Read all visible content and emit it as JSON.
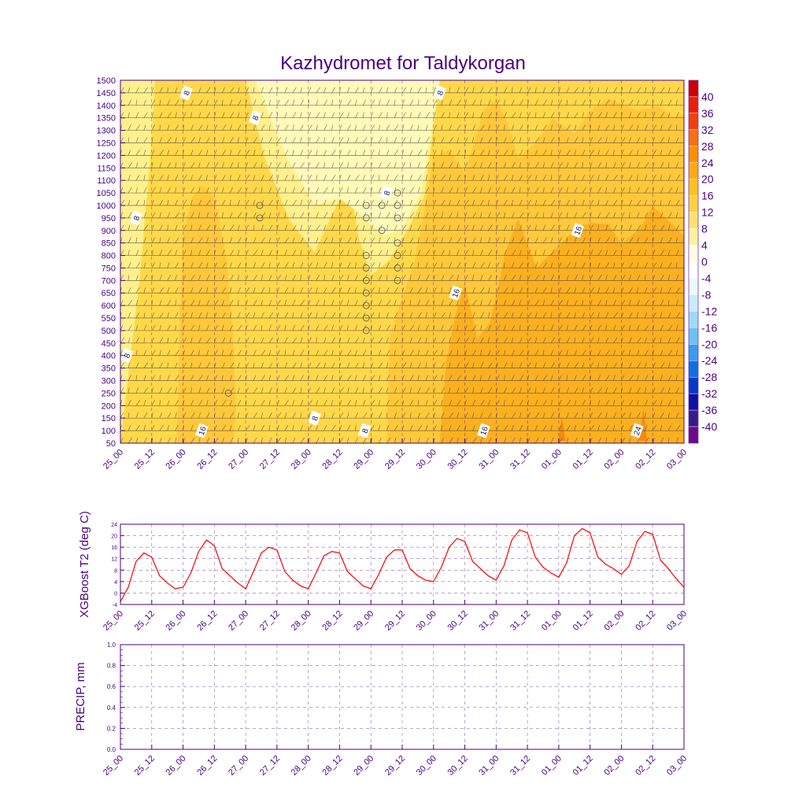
{
  "title": "Kazhydromet for Taldykorgan",
  "colors": {
    "axis": "#4b0082",
    "grid": "#4b0082",
    "t2_line": "#ff0000",
    "contour_line": "#555555",
    "barb": "#333333"
  },
  "time_labels": [
    "25_00",
    "25_12",
    "26_00",
    "26_12",
    "27_00",
    "27_12",
    "28_00",
    "28_12",
    "29_00",
    "29_12",
    "30_00",
    "30_12",
    "31_00",
    "31_12",
    "01_00",
    "01_12",
    "02_00",
    "02_12",
    "03_00"
  ],
  "chart_data": [
    {
      "type": "heatmap",
      "name": "cross-section",
      "title": "Kazhydromet for Taldykorgan",
      "xlabel": "",
      "ylabel": "",
      "x_ticks": [
        "25_00",
        "25_12",
        "26_00",
        "26_12",
        "27_00",
        "27_12",
        "28_00",
        "28_12",
        "29_00",
        "29_12",
        "30_00",
        "30_12",
        "31_00",
        "31_12",
        "01_00",
        "01_12",
        "02_00",
        "02_12",
        "03_00"
      ],
      "y_ticks": [
        50,
        100,
        150,
        200,
        250,
        300,
        350,
        400,
        450,
        500,
        550,
        600,
        650,
        700,
        750,
        800,
        850,
        900,
        950,
        1000,
        1050,
        1100,
        1150,
        1200,
        1250,
        1300,
        1350,
        1400,
        1450,
        1500
      ],
      "ylim": [
        50,
        1500
      ],
      "colorbar": {
        "labels": [
          "40",
          "36",
          "32",
          "28",
          "24",
          "20",
          "16",
          "12",
          "8",
          "4",
          "0",
          "-4",
          "-8",
          "-12",
          "-16",
          "-20",
          "-24",
          "-28",
          "-32",
          "-36",
          "-40"
        ],
        "colors": [
          "#cc0000",
          "#e8200a",
          "#f04010",
          "#f87010",
          "#fc9000",
          "#ffaa10",
          "#ffc020",
          "#ffd040",
          "#ffe070",
          "#fff0a0",
          "#fffde8",
          "#ffffff",
          "#eaf8fc",
          "#c8ecfa",
          "#a0daf5",
          "#6ec2f0",
          "#3a9cf0",
          "#1070e0",
          "#0838c8",
          "#1010a0",
          "#3a1a8a",
          "#6a0a8a"
        ]
      },
      "contour_labels": [
        {
          "text": "8",
          "t": 2.1,
          "p": 1450
        },
        {
          "text": "8",
          "t": 4.3,
          "p": 1350
        },
        {
          "text": "8",
          "t": 10.2,
          "p": 1450
        },
        {
          "text": "8",
          "t": 0.5,
          "p": 950
        },
        {
          "text": "8",
          "t": 8.5,
          "p": 1050
        },
        {
          "text": "8",
          "t": 0.2,
          "p": 400
        },
        {
          "text": "8",
          "t": 6.2,
          "p": 150
        },
        {
          "text": "8",
          "t": 7.8,
          "p": 100
        },
        {
          "text": "16",
          "t": 2.6,
          "p": 100
        },
        {
          "text": "16",
          "t": 10.7,
          "p": 650
        },
        {
          "text": "16",
          "t": 11.6,
          "p": 100
        },
        {
          "text": "16",
          "t": 14.6,
          "p": 900
        },
        {
          "text": "24",
          "t": 16.5,
          "p": 100
        }
      ]
    },
    {
      "type": "line",
      "name": "xgboost-t2",
      "title": "",
      "xlabel": "",
      "ylabel": "XGBoost T2 (deg C)",
      "ylim": [
        -4,
        24
      ],
      "y_ticks": [
        "-4",
        "0",
        "4",
        "8",
        "12",
        "16",
        "20",
        "24"
      ],
      "x_ticks": [
        "25_00",
        "25_12",
        "26_00",
        "26_12",
        "27_00",
        "27_12",
        "28_00",
        "28_12",
        "29_00",
        "29_12",
        "30_00",
        "30_12",
        "31_00",
        "31_12",
        "01_00",
        "01_12",
        "02_00",
        "02_12",
        "03_00"
      ],
      "series": [
        {
          "name": "T2",
          "x": [
            0,
            0.25,
            0.5,
            0.75,
            1,
            1.25,
            1.5,
            1.75,
            2,
            2.25,
            2.5,
            2.75,
            3,
            3.25,
            3.5,
            3.75,
            4,
            4.25,
            4.5,
            4.75,
            5,
            5.25,
            5.5,
            5.75,
            6,
            6.25,
            6.5,
            6.75,
            7,
            7.25,
            7.5,
            7.75,
            8,
            8.25,
            8.5,
            8.75,
            9,
            9.25,
            9.5,
            9.75,
            10,
            10.25,
            10.5,
            10.75,
            11,
            11.25,
            11.5,
            11.75,
            12,
            12.25,
            12.5,
            12.75,
            13,
            13.25,
            13.5,
            13.75,
            14,
            14.25,
            14.5,
            14.75,
            15,
            15.25,
            15.5,
            15.75,
            16,
            16.25,
            16.5,
            16.75,
            17,
            17.25,
            17.5,
            17.75,
            18
          ],
          "values": [
            -3,
            2,
            11,
            14,
            12.5,
            6,
            3.5,
            1.5,
            2,
            7,
            14.5,
            18.5,
            16.5,
            8.5,
            6,
            3.5,
            1.5,
            7.5,
            14,
            16,
            15,
            7.5,
            4.5,
            2.5,
            1.5,
            7,
            13,
            14.5,
            14,
            7.5,
            5,
            2.5,
            1.5,
            6.5,
            12.5,
            15,
            15,
            8.5,
            6,
            4.5,
            4,
            9,
            16,
            19,
            18,
            11,
            8.5,
            6,
            4.5,
            9.5,
            18.5,
            22,
            21,
            12.5,
            9,
            7,
            5.5,
            10.5,
            20,
            22.5,
            21,
            12.5,
            10,
            8.5,
            6.5,
            9.5,
            18,
            21.5,
            20.5,
            11.5,
            8.5,
            5,
            2
          ]
        }
      ]
    },
    {
      "type": "bar",
      "name": "precip",
      "title": "",
      "xlabel": "",
      "ylabel": "PRECIP, mm",
      "ylim": [
        0,
        1.0
      ],
      "y_ticks": [
        "0.0",
        "0.2",
        "0.4",
        "0.6",
        "0.8",
        "1.0"
      ],
      "x_ticks": [
        "25_00",
        "25_12",
        "26_00",
        "26_12",
        "27_00",
        "27_12",
        "28_00",
        "28_12",
        "29_00",
        "29_12",
        "30_00",
        "30_12",
        "31_00",
        "31_12",
        "01_00",
        "01_12",
        "02_00",
        "02_12",
        "03_00"
      ],
      "values": []
    }
  ]
}
